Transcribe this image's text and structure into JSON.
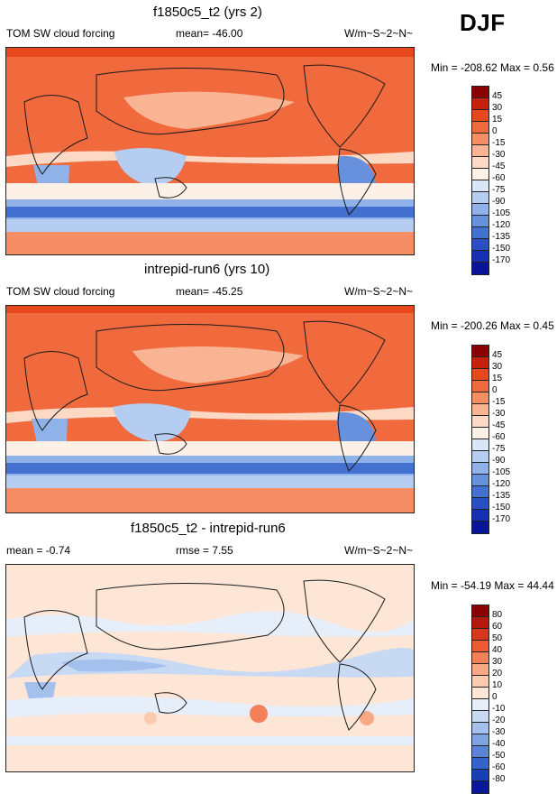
{
  "season": "DJF",
  "colors": {
    "land_coast": "#1a1a1a",
    "border": "#222222"
  },
  "panels": [
    {
      "title": "f1850c5_t2 (yrs 2)",
      "left_text": "TOM SW cloud forcing",
      "center_text": "mean= -46.00",
      "right_text": "W/m~S~2~N~",
      "minmax": "Min = -208.62 Max =   0.56",
      "levels": [
        "45",
        "30",
        "15",
        "0",
        "-15",
        "-30",
        "-45",
        "-60",
        "-75",
        "-90",
        "-105",
        "-120",
        "-135",
        "-150",
        "-170"
      ],
      "colors": [
        "#8b0000",
        "#c8200e",
        "#e8491c",
        "#f06a3e",
        "#f58d65",
        "#f9b493",
        "#fcd9c4",
        "#fdf0e6",
        "#d8e6f7",
        "#b4cdf0",
        "#8fb2e8",
        "#6791dc",
        "#4470d0",
        "#2a4fc4",
        "#1530b4",
        "#0a149a"
      ]
    },
    {
      "title": "intrepid-run6 (yrs 10)",
      "left_text": "TOM SW cloud forcing",
      "center_text": "mean= -45.25",
      "right_text": "W/m~S~2~N~",
      "minmax": "Min = -200.26 Max =   0.45",
      "levels": [
        "45",
        "30",
        "15",
        "0",
        "-15",
        "-30",
        "-45",
        "-60",
        "-75",
        "-90",
        "-105",
        "-120",
        "-135",
        "-150",
        "-170"
      ],
      "colors": [
        "#8b0000",
        "#c8200e",
        "#e8491c",
        "#f06a3e",
        "#f58d65",
        "#f9b493",
        "#fcd9c4",
        "#fdf0e6",
        "#d8e6f7",
        "#b4cdf0",
        "#8fb2e8",
        "#6791dc",
        "#4470d0",
        "#2a4fc4",
        "#1530b4",
        "#0a149a"
      ]
    },
    {
      "title": "f1850c5_t2 - intrepid-run6",
      "left_text": "mean =  -0.74",
      "center_text": "rmse =   7.55",
      "right_text": "W/m~S~2~N~",
      "minmax": "Min = -54.19 Max =  44.44",
      "levels": [
        "80",
        "60",
        "50",
        "40",
        "30",
        "20",
        "10",
        "0",
        "-10",
        "-20",
        "-30",
        "-40",
        "-50",
        "-60",
        "-80"
      ],
      "colors": [
        "#8b0000",
        "#b51810",
        "#d8361e",
        "#ee5a34",
        "#f4805a",
        "#f8a884",
        "#fbcbb0",
        "#fde6d6",
        "#e6eefa",
        "#c8d9f4",
        "#a4c0ec",
        "#7ea3e2",
        "#5a84d8",
        "#3563cc",
        "#1a3eb8",
        "#0a189c"
      ]
    }
  ],
  "chart_data": [
    {
      "type": "heatmap",
      "title": "f1850c5_t2 (yrs 2)",
      "subtitle": "TOM SW cloud forcing",
      "units": "W/m~S~2~N~",
      "mean": -46.0,
      "min": -208.62,
      "max": 0.56,
      "season": "DJF",
      "contour_levels": [
        45,
        30,
        15,
        0,
        -15,
        -30,
        -45,
        -60,
        -75,
        -90,
        -105,
        -120,
        -135,
        -150,
        -170
      ]
    },
    {
      "type": "heatmap",
      "title": "intrepid-run6 (yrs 10)",
      "subtitle": "TOM SW cloud forcing",
      "units": "W/m~S~2~N~",
      "mean": -45.25,
      "min": -200.26,
      "max": 0.45,
      "season": "DJF",
      "contour_levels": [
        45,
        30,
        15,
        0,
        -15,
        -30,
        -45,
        -60,
        -75,
        -90,
        -105,
        -120,
        -135,
        -150,
        -170
      ]
    },
    {
      "type": "heatmap",
      "title": "f1850c5_t2 - intrepid-run6",
      "units": "W/m~S~2~N~",
      "mean": -0.74,
      "rmse": 7.55,
      "min": -54.19,
      "max": 44.44,
      "season": "DJF",
      "contour_levels": [
        80,
        60,
        50,
        40,
        30,
        20,
        10,
        0,
        -10,
        -20,
        -30,
        -40,
        -50,
        -60,
        -80
      ]
    }
  ]
}
